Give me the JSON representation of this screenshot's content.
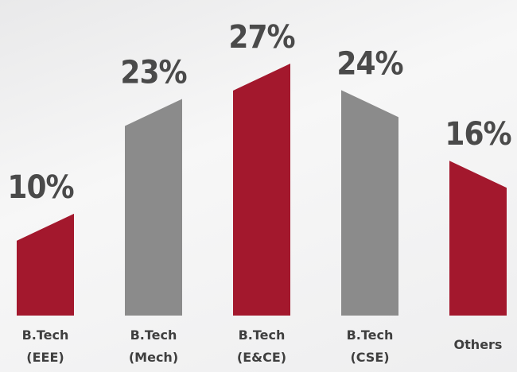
{
  "chart_data": {
    "type": "bar",
    "categories": [
      "B.Tech (EEE)",
      "B.Tech (Mech)",
      "B.Tech (E&CE)",
      "B.Tech (CSE)",
      "Others"
    ],
    "values": [
      10,
      23,
      27,
      24,
      16
    ],
    "value_labels": [
      "10%",
      "23%",
      "27%",
      "24%",
      "16%"
    ],
    "colors": [
      "#a3182d",
      "#8b8b8b",
      "#a3182d",
      "#8b8b8b",
      "#a3182d"
    ]
  }
}
